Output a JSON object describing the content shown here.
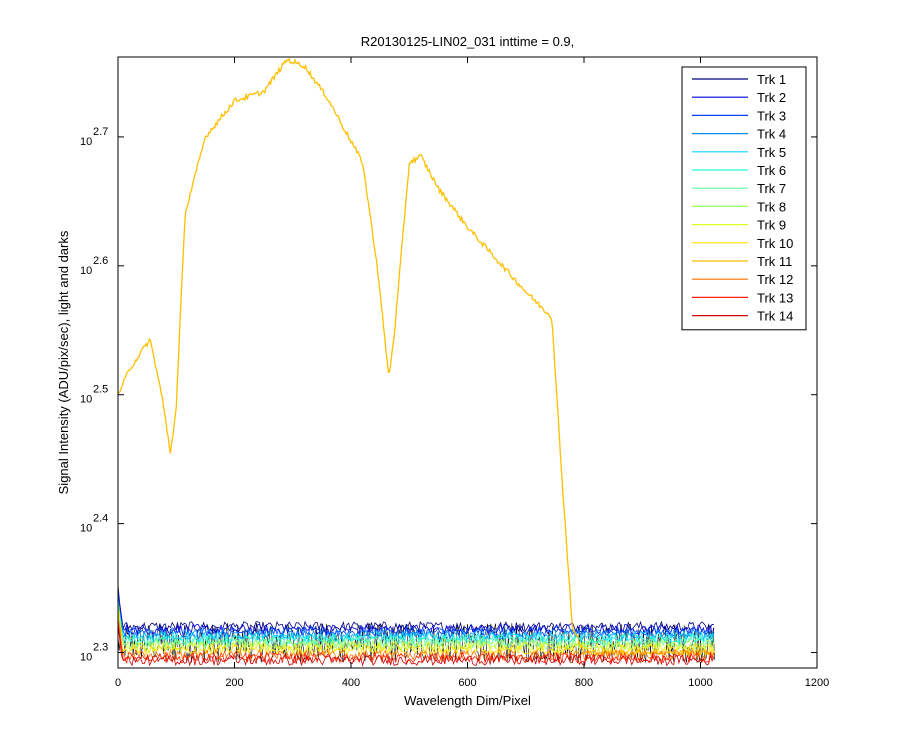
{
  "chart_data": {
    "type": "line",
    "title": "R20130125-LIN02_031 inttime = 0.9,",
    "xlabel": "Wavelength Dim/Pixel",
    "ylabel": "Signal Intensity (ADU/pix/sec), light and darks",
    "xlim": [
      0,
      1200
    ],
    "ylim_log10": [
      2.288,
      2.762
    ],
    "yscale": "log",
    "x_ticks": [
      0,
      200,
      400,
      600,
      800,
      1000,
      1200
    ],
    "y_tick_base": "10",
    "y_tick_exponents": [
      "2.3",
      "2.4",
      "2.5",
      "2.6",
      "2.7"
    ],
    "y_tick_values_log10": [
      2.3,
      2.4,
      2.5,
      2.6,
      2.7
    ],
    "grid": false,
    "legend_position": "top-right",
    "series": [
      {
        "name": "Trk 1",
        "color": "#00007f",
        "baseline_log10": 2.32
      },
      {
        "name": "Trk 2",
        "color": "#0000d8",
        "baseline_log10": 2.318
      },
      {
        "name": "Trk 3",
        "color": "#0040ff",
        "baseline_log10": 2.316
      },
      {
        "name": "Trk 4",
        "color": "#0090ff",
        "baseline_log10": 2.314
      },
      {
        "name": "Trk 5",
        "color": "#00d8ff",
        "baseline_log10": 2.312
      },
      {
        "name": "Trk 6",
        "color": "#20ffdf",
        "baseline_log10": 2.31
      },
      {
        "name": "Trk 7",
        "color": "#5fffa0",
        "baseline_log10": 2.308
      },
      {
        "name": "Trk 8",
        "color": "#9fff60",
        "baseline_log10": 2.306
      },
      {
        "name": "Trk 9",
        "color": "#dfff20",
        "baseline_log10": 2.304
      },
      {
        "name": "Trk 10",
        "color": "#ffe000",
        "baseline_log10": 2.302
      },
      {
        "name": "Trk 11",
        "color": "#ffbf00",
        "baseline_log10": 2.3,
        "x": [
          0,
          20,
          55,
          75,
          90,
          100,
          115,
          150,
          200,
          250,
          290,
          320,
          360,
          420,
          445,
          465,
          475,
          500,
          520,
          550,
          600,
          700,
          745,
          760,
          780,
          800,
          820
        ],
        "y_log10": [
          2.5,
          2.52,
          2.543,
          2.5,
          2.455,
          2.49,
          2.64,
          2.7,
          2.728,
          2.735,
          2.76,
          2.755,
          2.73,
          2.68,
          2.6,
          2.513,
          2.55,
          2.68,
          2.685,
          2.66,
          2.63,
          2.58,
          2.56,
          2.45,
          2.32,
          2.3,
          2.3
        ]
      },
      {
        "name": "Trk 12",
        "color": "#ff7000",
        "baseline_log10": 2.298
      },
      {
        "name": "Trk 13",
        "color": "#ff2000",
        "baseline_log10": 2.296
      },
      {
        "name": "Trk 14",
        "color": "#d00000",
        "baseline_log10": 2.294
      }
    ],
    "dark_noise_band_log10": [
      2.292,
      2.323
    ],
    "x_data_range": [
      0,
      1024
    ]
  }
}
